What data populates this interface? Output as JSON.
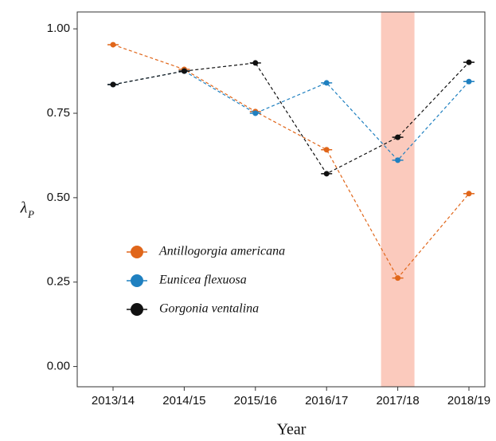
{
  "chart_data": {
    "type": "line",
    "x_label": "Year",
    "y_label": "λ",
    "y_label_subscript": "P",
    "categories": [
      "2013/14",
      "2014/15",
      "2015/16",
      "2016/17",
      "2017/18",
      "2018/19"
    ],
    "highlight": "2017/18",
    "highlight_color": "#fbcabd",
    "series": [
      {
        "name": "Antillogorgia americana",
        "color": "#e0661a",
        "values": [
          0.953,
          0.88,
          0.755,
          0.642,
          0.262,
          0.512
        ]
      },
      {
        "name": "Eunicea flexuosa",
        "color": "#1f80c0",
        "values": [
          0.835,
          0.875,
          0.75,
          0.84,
          0.611,
          0.844
        ]
      },
      {
        "name": "Gorgonia ventalina",
        "color": "#111111",
        "values": [
          0.835,
          0.875,
          0.899,
          0.571,
          0.679,
          0.901
        ]
      }
    ],
    "ylim": [
      -0.06,
      1.05
    ],
    "yticks": [
      {
        "value": 0,
        "label": "0.00"
      },
      {
        "value": 0.25,
        "label": "0.25"
      },
      {
        "value": 0.5,
        "label": "0.50"
      },
      {
        "value": 0.75,
        "label": "0.75"
      },
      {
        "value": 1,
        "label": "1.00"
      }
    ]
  }
}
